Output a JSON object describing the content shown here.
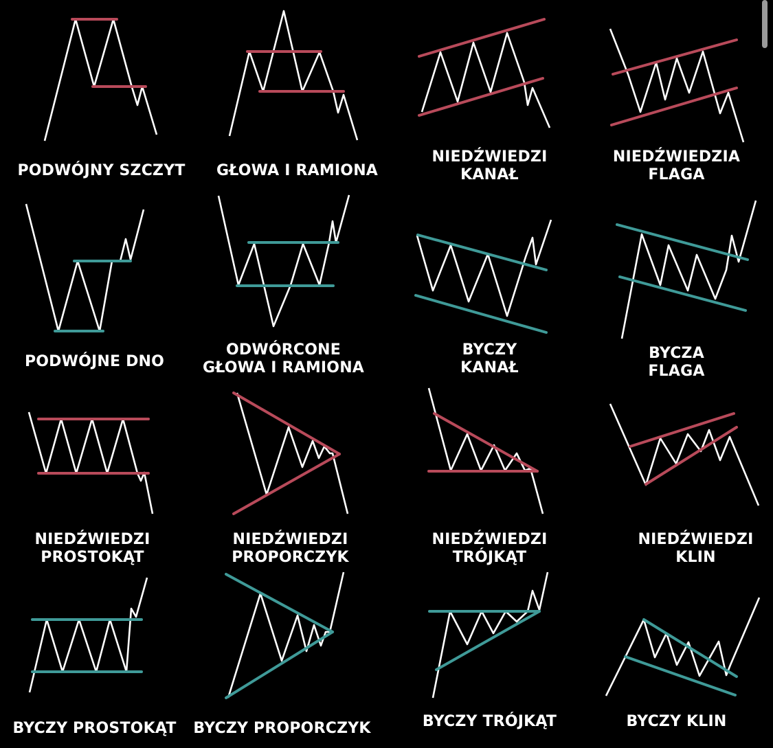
{
  "colors": {
    "background": "#000000",
    "price": "#ffffff",
    "bearish_line": "#b84a5a",
    "bullish_line": "#3f9a98",
    "label": "#ffffff"
  },
  "patterns": [
    {
      "id": "double-top",
      "label": "PODWÓJNY SZCZYT",
      "trend": "bearish"
    },
    {
      "id": "head-and-shoulders",
      "label": "GŁOWA I RAMIONA",
      "trend": "bearish"
    },
    {
      "id": "bear-channel",
      "label": "NIEDŹWIEDZI\nKANAŁ",
      "trend": "bearish"
    },
    {
      "id": "bear-flag",
      "label": "NIEDŹWIEDZIA\nFLAGA",
      "trend": "bearish"
    },
    {
      "id": "double-bottom",
      "label": "PODWÓJNE DNO",
      "trend": "bullish"
    },
    {
      "id": "inverse-head-and-shoulders",
      "label": "ODWÓRCONE\nGŁOWA I RAMIONA",
      "trend": "bullish"
    },
    {
      "id": "bull-channel",
      "label": "BYCZY\nKANAŁ",
      "trend": "bullish"
    },
    {
      "id": "bull-flag",
      "label": "BYCZA\nFLAGA",
      "trend": "bullish"
    },
    {
      "id": "bear-rectangle",
      "label": "NIEDŹWIEDZI\nPROSTOKĄT",
      "trend": "bearish"
    },
    {
      "id": "bear-pennant",
      "label": "NIEDŹWIEDZI\nPROPORCZYK",
      "trend": "bearish"
    },
    {
      "id": "bear-triangle",
      "label": "NIEDŹWIEDZI\nTRÓJKĄT",
      "trend": "bearish"
    },
    {
      "id": "bear-wedge",
      "label": "NIEDŹWIEDZI\nKLIN",
      "trend": "bearish"
    },
    {
      "id": "bull-rectangle",
      "label": "BYCZY PROSTOKĄT",
      "trend": "bullish"
    },
    {
      "id": "bull-pennant",
      "label": "BYCZY PROPORCZYK",
      "trend": "bullish"
    },
    {
      "id": "bull-triangle",
      "label": "BYCZY TRÓJKĄT",
      "trend": "bullish"
    },
    {
      "id": "bull-wedge",
      "label": "BYCZY KLIN",
      "trend": "bullish"
    }
  ]
}
